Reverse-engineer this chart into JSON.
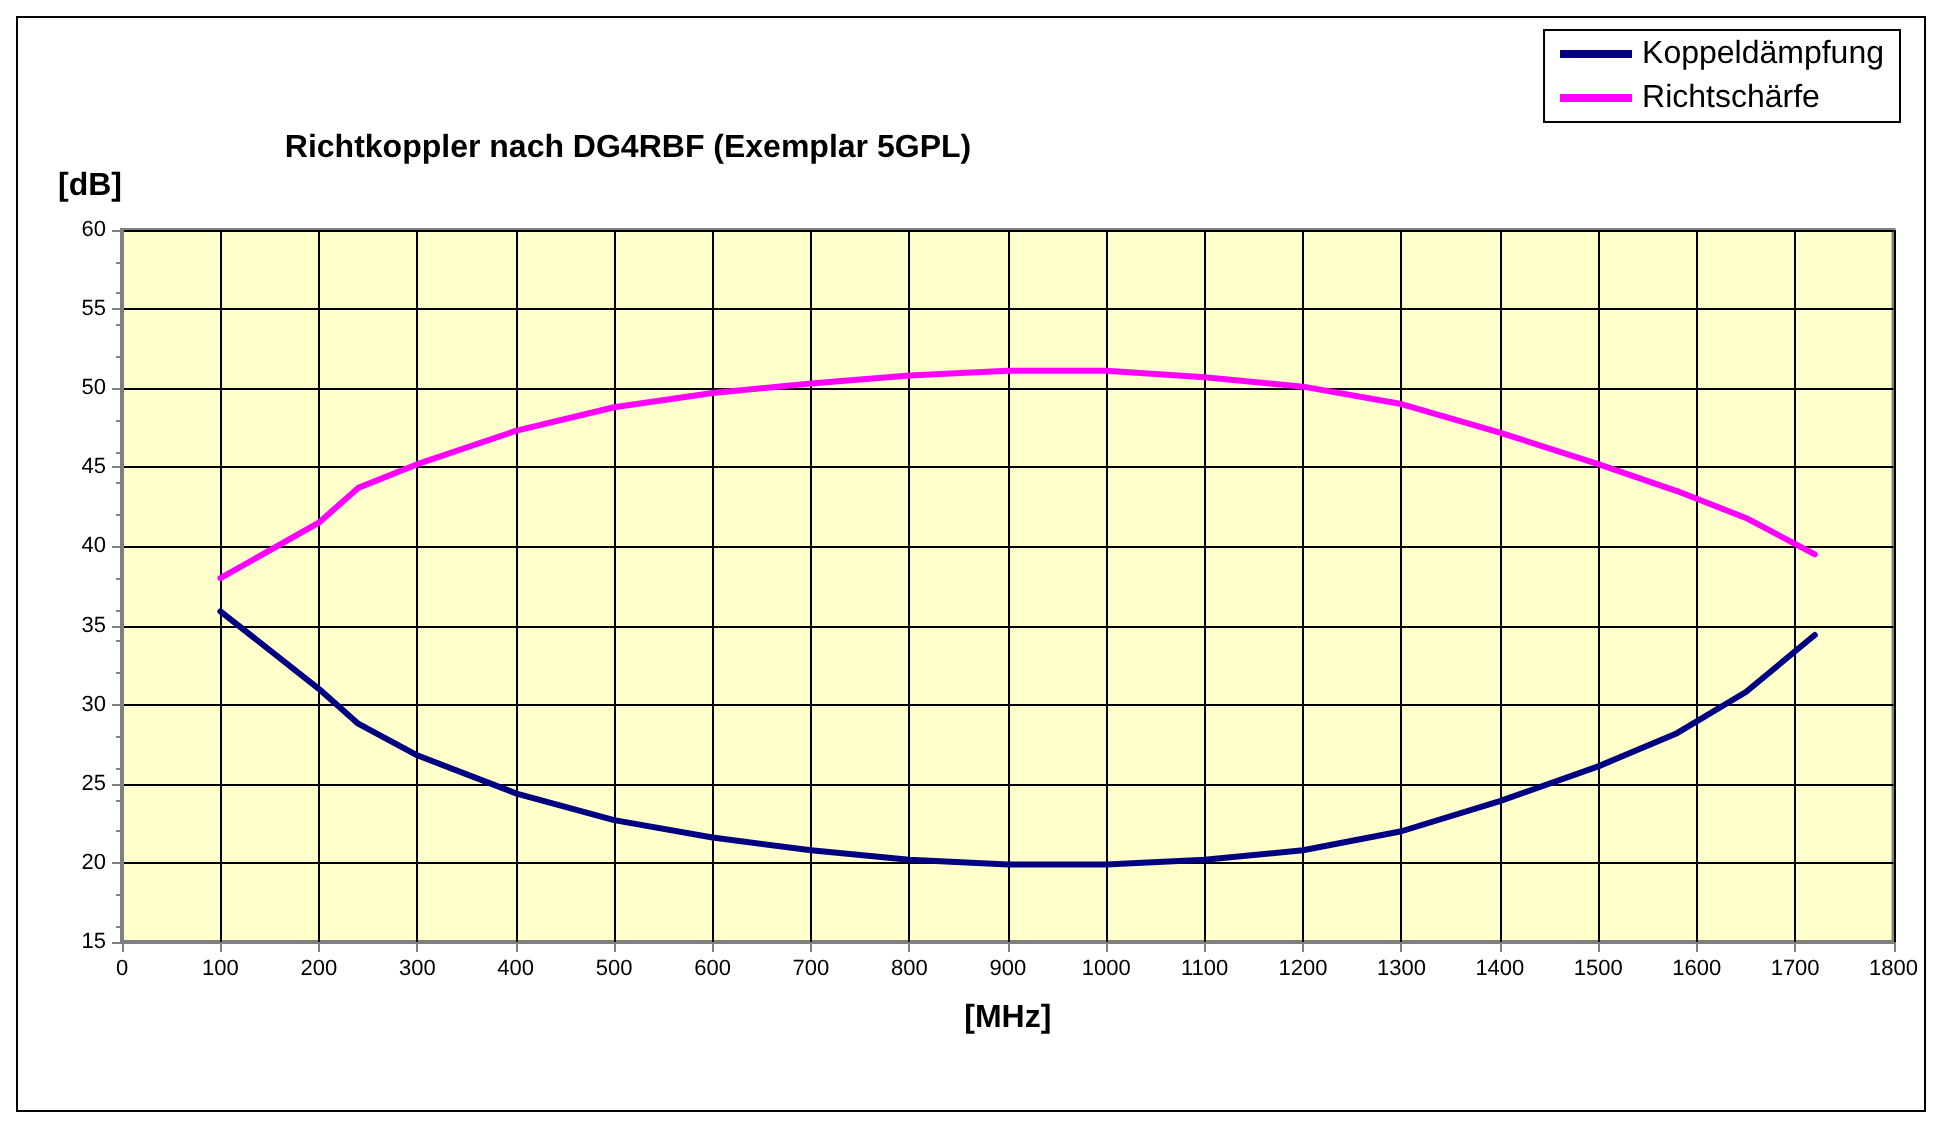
{
  "chart_data": {
    "type": "line",
    "title": "Richtkoppler nach DG4RBF (Exemplar 5GPL)",
    "xlabel": "[MHz]",
    "ylabel": "[dB]",
    "x": [
      100,
      200,
      240,
      300,
      400,
      500,
      600,
      700,
      800,
      900,
      1000,
      1100,
      1200,
      1300,
      1400,
      1500,
      1580,
      1650,
      1720
    ],
    "series": [
      {
        "name": "Koppeldämpfung",
        "color": "#000080",
        "values": [
          35.9,
          31,
          28.8,
          26.8,
          24.4,
          22.7,
          21.6,
          20.8,
          20.2,
          19.9,
          19.9,
          20.2,
          20.8,
          22,
          23.9,
          26.1,
          28.2,
          30.8,
          34.4
        ]
      },
      {
        "name": "Richtschärfe",
        "color": "#ff00ff",
        "values": [
          38,
          41.5,
          43.7,
          45.2,
          47.3,
          48.8,
          49.7,
          50.3,
          50.8,
          51.1,
          51.1,
          50.7,
          50.1,
          49,
          47.2,
          45.2,
          43.5,
          41.8,
          39.5
        ]
      }
    ],
    "xlim": [
      0,
      1800
    ],
    "xticks": [
      0,
      100,
      200,
      300,
      400,
      500,
      600,
      700,
      800,
      900,
      1000,
      1100,
      1200,
      1300,
      1400,
      1500,
      1600,
      1700,
      1800
    ],
    "ylim": [
      15,
      60
    ],
    "yticks": [
      15,
      20,
      25,
      30,
      35,
      40,
      45,
      50,
      55,
      60
    ],
    "grid": true,
    "legend": "top right",
    "marker": "none",
    "line_style": "solid"
  }
}
